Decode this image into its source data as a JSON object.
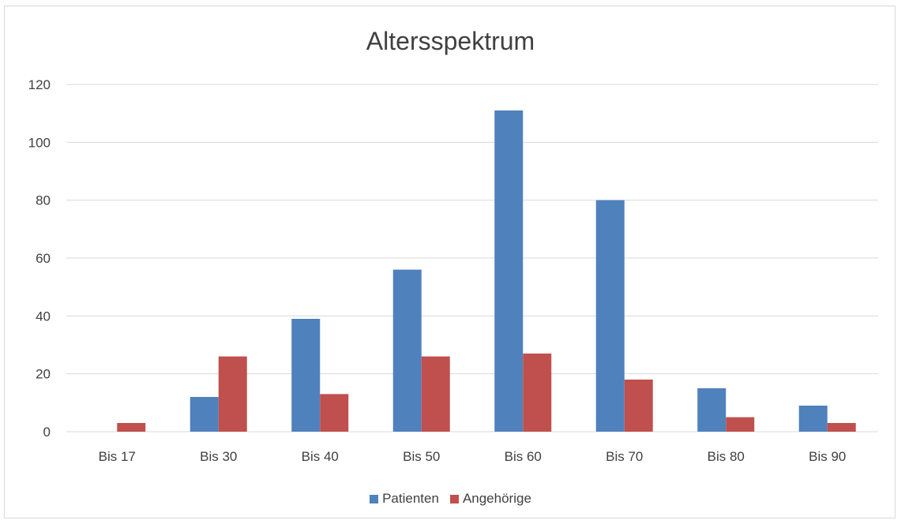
{
  "chart_data": {
    "type": "bar",
    "title": "Altersspektrum",
    "categories": [
      "Bis 17",
      "Bis 30",
      "Bis 40",
      "Bis 50",
      "Bis 60",
      "Bis 70",
      "Bis 80",
      "Bis 90"
    ],
    "series": [
      {
        "name": "Patienten",
        "color": "#4f81bd",
        "values": [
          0,
          12,
          39,
          56,
          111,
          80,
          15,
          9
        ]
      },
      {
        "name": "Angehörige",
        "color": "#c0504d",
        "values": [
          3,
          26,
          13,
          26,
          27,
          18,
          5,
          3
        ]
      }
    ],
    "ylim": [
      0,
      120
    ],
    "yticks": [
      0,
      20,
      40,
      60,
      80,
      100,
      120
    ],
    "grid": true,
    "legend": "bottom"
  }
}
